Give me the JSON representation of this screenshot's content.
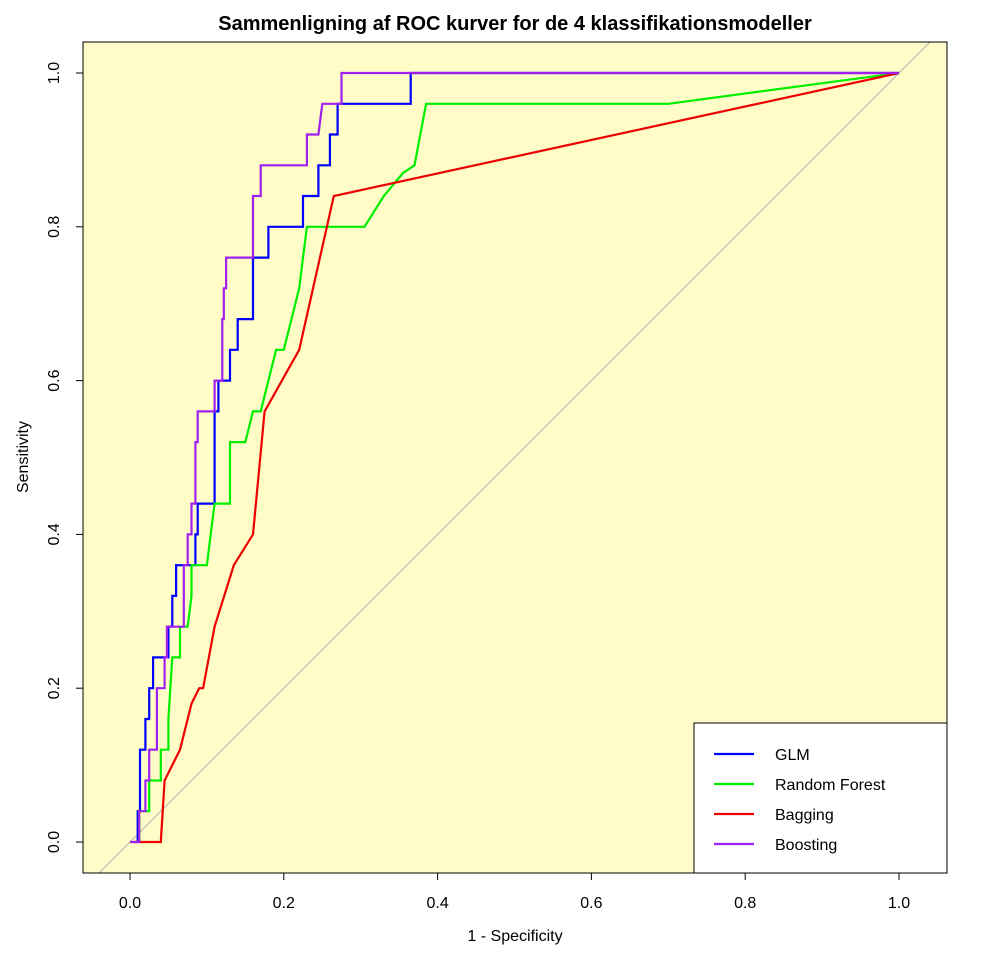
{
  "chart_data": {
    "type": "line",
    "title": "Sammenligning af ROC kurver for de 4 klassifikationsmodeller",
    "xlabel": "1 - Specificity",
    "ylabel": "Sensitivity",
    "xlim": [
      0.0,
      1.0
    ],
    "ylim": [
      0.0,
      1.0
    ],
    "xticks": [
      "0.0",
      "0.2",
      "0.4",
      "0.6",
      "0.8",
      "1.0"
    ],
    "yticks": [
      "0.0",
      "0.2",
      "0.4",
      "0.6",
      "0.8",
      "1.0"
    ],
    "background_color": "#FFFCC8",
    "legend_position": "bottom-right",
    "reference_line": "diagonal",
    "series": [
      {
        "name": "GLM",
        "color": "#0000FF",
        "points": [
          [
            0.01,
            0.0
          ],
          [
            0.01,
            0.04
          ],
          [
            0.013,
            0.04
          ],
          [
            0.013,
            0.12
          ],
          [
            0.02,
            0.12
          ],
          [
            0.02,
            0.16
          ],
          [
            0.025,
            0.16
          ],
          [
            0.025,
            0.2
          ],
          [
            0.03,
            0.2
          ],
          [
            0.03,
            0.24
          ],
          [
            0.05,
            0.24
          ],
          [
            0.05,
            0.28
          ],
          [
            0.055,
            0.28
          ],
          [
            0.055,
            0.32
          ],
          [
            0.06,
            0.32
          ],
          [
            0.06,
            0.36
          ],
          [
            0.085,
            0.36
          ],
          [
            0.085,
            0.4
          ],
          [
            0.088,
            0.4
          ],
          [
            0.088,
            0.44
          ],
          [
            0.11,
            0.44
          ],
          [
            0.11,
            0.56
          ],
          [
            0.115,
            0.56
          ],
          [
            0.115,
            0.6
          ],
          [
            0.13,
            0.6
          ],
          [
            0.13,
            0.64
          ],
          [
            0.14,
            0.64
          ],
          [
            0.14,
            0.68
          ],
          [
            0.16,
            0.68
          ],
          [
            0.16,
            0.76
          ],
          [
            0.18,
            0.76
          ],
          [
            0.18,
            0.8
          ],
          [
            0.225,
            0.8
          ],
          [
            0.225,
            0.84
          ],
          [
            0.245,
            0.84
          ],
          [
            0.245,
            0.88
          ],
          [
            0.26,
            0.88
          ],
          [
            0.26,
            0.92
          ],
          [
            0.27,
            0.92
          ],
          [
            0.27,
            0.96
          ],
          [
            0.365,
            0.96
          ],
          [
            0.365,
            1.0
          ],
          [
            1.0,
            1.0
          ]
        ]
      },
      {
        "name": "Random Forest",
        "color": "#00EE00",
        "points": [
          [
            0.012,
            0.0
          ],
          [
            0.012,
            0.04
          ],
          [
            0.025,
            0.04
          ],
          [
            0.025,
            0.08
          ],
          [
            0.04,
            0.08
          ],
          [
            0.04,
            0.12
          ],
          [
            0.05,
            0.12
          ],
          [
            0.05,
            0.16
          ],
          [
            0.055,
            0.24
          ],
          [
            0.065,
            0.24
          ],
          [
            0.065,
            0.28
          ],
          [
            0.075,
            0.28
          ],
          [
            0.08,
            0.32
          ],
          [
            0.08,
            0.36
          ],
          [
            0.1,
            0.36
          ],
          [
            0.105,
            0.4
          ],
          [
            0.11,
            0.44
          ],
          [
            0.13,
            0.44
          ],
          [
            0.13,
            0.52
          ],
          [
            0.15,
            0.52
          ],
          [
            0.16,
            0.56
          ],
          [
            0.17,
            0.56
          ],
          [
            0.18,
            0.6
          ],
          [
            0.19,
            0.64
          ],
          [
            0.2,
            0.64
          ],
          [
            0.21,
            0.68
          ],
          [
            0.22,
            0.72
          ],
          [
            0.225,
            0.76
          ],
          [
            0.23,
            0.8
          ],
          [
            0.305,
            0.8
          ],
          [
            0.33,
            0.84
          ],
          [
            0.355,
            0.87
          ],
          [
            0.37,
            0.88
          ],
          [
            0.385,
            0.96
          ],
          [
            0.7,
            0.96
          ],
          [
            1.0,
            1.0
          ]
        ]
      },
      {
        "name": "Bagging",
        "color": "#EE0000",
        "points": [
          [
            0.005,
            0.0
          ],
          [
            0.04,
            0.0
          ],
          [
            0.045,
            0.08
          ],
          [
            0.065,
            0.12
          ],
          [
            0.08,
            0.18
          ],
          [
            0.09,
            0.2
          ],
          [
            0.095,
            0.2
          ],
          [
            0.11,
            0.28
          ],
          [
            0.135,
            0.36
          ],
          [
            0.16,
            0.4
          ],
          [
            0.175,
            0.56
          ],
          [
            0.22,
            0.64
          ],
          [
            0.265,
            0.84
          ],
          [
            1.0,
            1.0
          ]
        ]
      },
      {
        "name": "Boosting",
        "color": "#A020F0",
        "points": [
          [
            0.0,
            0.0
          ],
          [
            0.012,
            0.0
          ],
          [
            0.012,
            0.04
          ],
          [
            0.02,
            0.04
          ],
          [
            0.02,
            0.08
          ],
          [
            0.025,
            0.08
          ],
          [
            0.025,
            0.12
          ],
          [
            0.035,
            0.12
          ],
          [
            0.035,
            0.2
          ],
          [
            0.045,
            0.2
          ],
          [
            0.045,
            0.24
          ],
          [
            0.048,
            0.24
          ],
          [
            0.048,
            0.28
          ],
          [
            0.07,
            0.28
          ],
          [
            0.07,
            0.36
          ],
          [
            0.075,
            0.36
          ],
          [
            0.075,
            0.4
          ],
          [
            0.08,
            0.4
          ],
          [
            0.08,
            0.44
          ],
          [
            0.085,
            0.44
          ],
          [
            0.085,
            0.52
          ],
          [
            0.088,
            0.52
          ],
          [
            0.088,
            0.56
          ],
          [
            0.11,
            0.56
          ],
          [
            0.11,
            0.6
          ],
          [
            0.12,
            0.6
          ],
          [
            0.12,
            0.68
          ],
          [
            0.122,
            0.68
          ],
          [
            0.122,
            0.72
          ],
          [
            0.125,
            0.72
          ],
          [
            0.125,
            0.76
          ],
          [
            0.16,
            0.76
          ],
          [
            0.16,
            0.84
          ],
          [
            0.17,
            0.84
          ],
          [
            0.17,
            0.88
          ],
          [
            0.23,
            0.88
          ],
          [
            0.23,
            0.92
          ],
          [
            0.245,
            0.92
          ],
          [
            0.25,
            0.96
          ],
          [
            0.275,
            0.96
          ],
          [
            0.275,
            1.0
          ],
          [
            1.0,
            1.0
          ]
        ]
      }
    ]
  }
}
